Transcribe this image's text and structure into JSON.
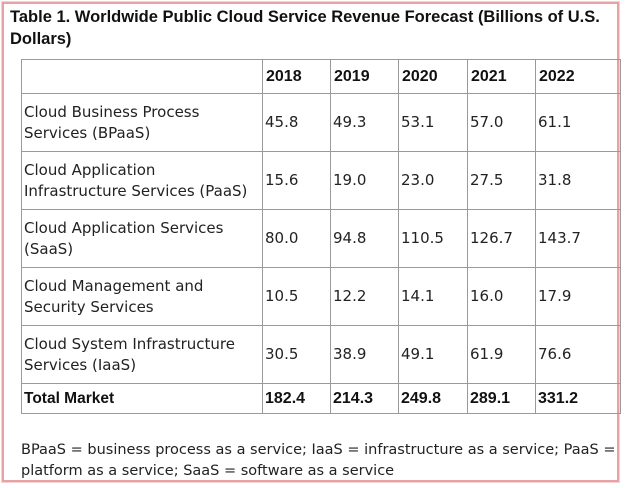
{
  "table": {
    "title": "Table 1. Worldwide Public Cloud Service Revenue Forecast (Billions of U.S. Dollars)",
    "columns": [
      "",
      "2018",
      "2019",
      "2020",
      "2021",
      "2022"
    ],
    "rows": [
      {
        "label": "Cloud Business Process Services (BPaaS)",
        "values": [
          "45.8",
          "49.3",
          "53.1",
          "57.0",
          "61.1"
        ]
      },
      {
        "label": "Cloud Application Infrastructure Services (PaaS)",
        "values": [
          "15.6",
          "19.0",
          "23.0",
          "27.5",
          "31.8"
        ]
      },
      {
        "label": "Cloud Application Services (SaaS)",
        "values": [
          "80.0",
          "94.8",
          "110.5",
          "126.7",
          "143.7"
        ]
      },
      {
        "label": "Cloud Management and Security Services",
        "values": [
          "10.5",
          "12.2",
          "14.1",
          "16.0",
          "17.9"
        ]
      },
      {
        "label": "Cloud System Infrastructure Services (IaaS)",
        "values": [
          "30.5",
          "38.9",
          "49.1",
          "61.9",
          "76.6"
        ]
      }
    ],
    "total": {
      "label": "Total Market",
      "values": [
        "182.4",
        "214.3",
        "249.8",
        "289.1",
        "331.2"
      ]
    },
    "footnote": "BPaaS = business process as a service; IaaS = infrastructure as a service; PaaS = platform as a service; SaaS = software as a service"
  },
  "chart_data": {
    "type": "table",
    "title": "Table 1. Worldwide Public Cloud Service Revenue Forecast (Billions of U.S. Dollars)",
    "categories": [
      "2018",
      "2019",
      "2020",
      "2021",
      "2022"
    ],
    "series": [
      {
        "name": "Cloud Business Process Services (BPaaS)",
        "values": [
          45.8,
          49.3,
          53.1,
          57.0,
          61.1
        ]
      },
      {
        "name": "Cloud Application Infrastructure Services (PaaS)",
        "values": [
          15.6,
          19.0,
          23.0,
          27.5,
          31.8
        ]
      },
      {
        "name": "Cloud Application Services (SaaS)",
        "values": [
          80.0,
          94.8,
          110.5,
          126.7,
          143.7
        ]
      },
      {
        "name": "Cloud Management and Security Services",
        "values": [
          10.5,
          12.2,
          14.1,
          16.0,
          17.9
        ]
      },
      {
        "name": "Cloud System Infrastructure Services (IaaS)",
        "values": [
          30.5,
          38.9,
          49.1,
          61.9,
          76.6
        ]
      },
      {
        "name": "Total Market",
        "values": [
          182.4,
          214.3,
          249.8,
          289.1,
          331.2
        ]
      }
    ]
  }
}
